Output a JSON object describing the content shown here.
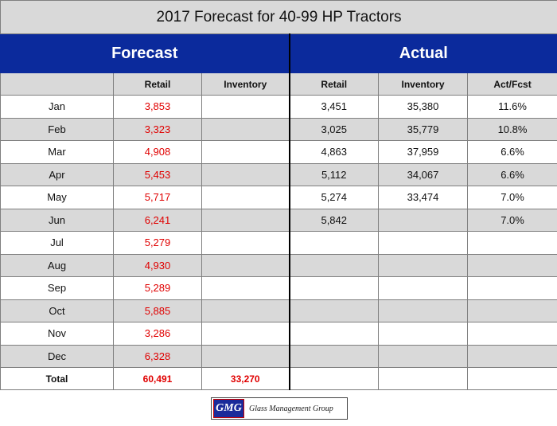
{
  "title": "2017 Forecast for 40-99 HP Tractors",
  "bands": {
    "forecast": "Forecast",
    "actual": "Actual"
  },
  "columns": {
    "month": "",
    "retail": "Retail",
    "inventory": "Inventory",
    "actual_retail": "Retail",
    "actual_inventory": "Inventory",
    "act_fcst": "Act/Fcst"
  },
  "rows": [
    {
      "month": "Jan",
      "f_retail": "3,853",
      "f_inv": "",
      "a_retail": "3,451",
      "a_inv": "35,380",
      "ratio": "11.6%"
    },
    {
      "month": "Feb",
      "f_retail": "3,323",
      "f_inv": "",
      "a_retail": "3,025",
      "a_inv": "35,779",
      "ratio": "10.8%"
    },
    {
      "month": "Mar",
      "f_retail": "4,908",
      "f_inv": "",
      "a_retail": "4,863",
      "a_inv": "37,959",
      "ratio": "6.6%"
    },
    {
      "month": "Apr",
      "f_retail": "5,453",
      "f_inv": "",
      "a_retail": "5,112",
      "a_inv": "34,067",
      "ratio": "6.6%"
    },
    {
      "month": "May",
      "f_retail": "5,717",
      "f_inv": "",
      "a_retail": "5,274",
      "a_inv": "33,474",
      "ratio": "7.0%"
    },
    {
      "month": "Jun",
      "f_retail": "6,241",
      "f_inv": "",
      "a_retail": "5,842",
      "a_inv": "",
      "ratio": "7.0%"
    },
    {
      "month": "Jul",
      "f_retail": "5,279",
      "f_inv": "",
      "a_retail": "",
      "a_inv": "",
      "ratio": ""
    },
    {
      "month": "Aug",
      "f_retail": "4,930",
      "f_inv": "",
      "a_retail": "",
      "a_inv": "",
      "ratio": ""
    },
    {
      "month": "Sep",
      "f_retail": "5,289",
      "f_inv": "",
      "a_retail": "",
      "a_inv": "",
      "ratio": ""
    },
    {
      "month": "Oct",
      "f_retail": "5,885",
      "f_inv": "",
      "a_retail": "",
      "a_inv": "",
      "ratio": ""
    },
    {
      "month": "Nov",
      "f_retail": "3,286",
      "f_inv": "",
      "a_retail": "",
      "a_inv": "",
      "ratio": ""
    },
    {
      "month": "Dec",
      "f_retail": "6,328",
      "f_inv": "",
      "a_retail": "",
      "a_inv": "",
      "ratio": ""
    }
  ],
  "total": {
    "label": "Total",
    "f_retail": "60,491",
    "f_inv": "33,270",
    "a_retail": "",
    "a_inv": "",
    "ratio": ""
  },
  "logo": {
    "mark": "GMG",
    "name": "Glass Management Group"
  },
  "colors": {
    "band_blue": "#0b2a9c",
    "forecast_red": "#e00000",
    "stripe_gray": "#d9d9d9"
  }
}
